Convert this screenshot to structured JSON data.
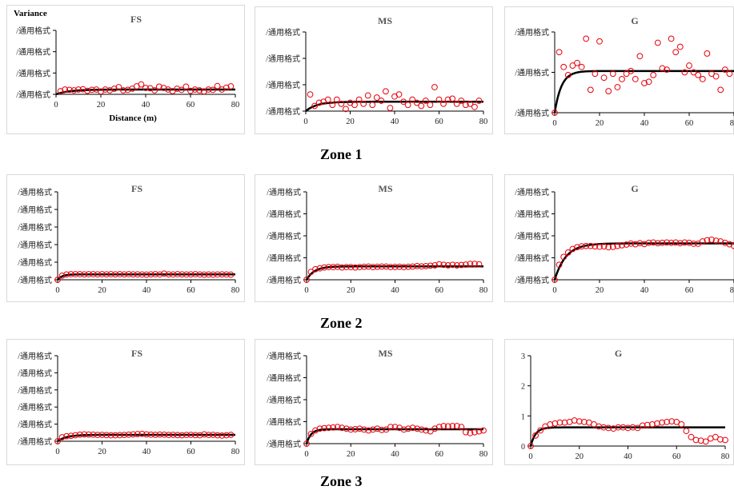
{
  "figure": {
    "zones": [
      "Zone 1",
      "Zone 2",
      "Zone 3"
    ]
  },
  "chart_data": [
    {
      "type": "scatter",
      "zone": "Zone 1",
      "title": "FS",
      "ylabel": "Variance",
      "xlabel": "Distance (m)",
      "xlim": [
        0,
        80
      ],
      "xticks": [
        0,
        20,
        40,
        60,
        80
      ],
      "yticks": [
        "/通用格式",
        "/通用格式",
        "/通用格式",
        "/通用格式"
      ],
      "ylim": [
        0,
        4
      ],
      "series": [
        {
          "kind": "points",
          "x": [
            2,
            4,
            6,
            8,
            10,
            12,
            14,
            16,
            18,
            20,
            22,
            24,
            26,
            28,
            30,
            32,
            34,
            36,
            38,
            40,
            42,
            44,
            46,
            48,
            50,
            52,
            54,
            56,
            58,
            60,
            62,
            64,
            66,
            68,
            70,
            72,
            74,
            76,
            78
          ],
          "y": [
            0.2,
            0.3,
            0.28,
            0.25,
            0.3,
            0.32,
            0.22,
            0.28,
            0.3,
            0.18,
            0.3,
            0.25,
            0.35,
            0.45,
            0.25,
            0.28,
            0.35,
            0.5,
            0.62,
            0.4,
            0.38,
            0.25,
            0.48,
            0.4,
            0.3,
            0.2,
            0.35,
            0.28,
            0.48,
            0.22,
            0.3,
            0.25,
            0.18,
            0.3,
            0.28,
            0.52,
            0.3,
            0.42,
            0.5
          ]
        },
        {
          "kind": "model",
          "sill": 0.3,
          "range": 6
        }
      ]
    },
    {
      "type": "scatter",
      "zone": "Zone 1",
      "title": "MS",
      "xlim": [
        0,
        80
      ],
      "xticks": [
        0,
        20,
        40,
        60,
        80
      ],
      "yticks": [
        "/通用格式",
        "/通用格式",
        "/通用格式",
        "/通用格式"
      ],
      "ylim": [
        0,
        3.8
      ],
      "series": [
        {
          "kind": "points",
          "x": [
            2,
            4,
            6,
            8,
            10,
            12,
            14,
            16,
            18,
            20,
            22,
            24,
            26,
            28,
            30,
            32,
            34,
            36,
            38,
            40,
            42,
            44,
            46,
            48,
            50,
            52,
            54,
            56,
            58,
            60,
            62,
            64,
            66,
            68,
            70,
            72,
            74,
            76,
            78
          ],
          "y": [
            0.8,
            0.25,
            0.4,
            0.45,
            0.55,
            0.3,
            0.55,
            0.35,
            0.1,
            0.4,
            0.3,
            0.55,
            0.35,
            0.75,
            0.3,
            0.65,
            0.5,
            0.95,
            0.15,
            0.7,
            0.8,
            0.45,
            0.3,
            0.55,
            0.4,
            0.25,
            0.5,
            0.3,
            1.15,
            0.55,
            0.35,
            0.55,
            0.6,
            0.35,
            0.5,
            0.3,
            0.35,
            0.2,
            0.5
          ]
        },
        {
          "kind": "model",
          "sill": 0.45,
          "range": 5
        }
      ]
    },
    {
      "type": "scatter",
      "zone": "Zone 1",
      "title": "G",
      "xlim": [
        0,
        80
      ],
      "xticks": [
        0,
        20,
        40,
        60,
        80
      ],
      "yticks": [
        "/通用格式",
        "/通用格式",
        "/通用格式"
      ],
      "ylim": [
        0,
        3
      ],
      "series": [
        {
          "kind": "points",
          "x": [
            0,
            2,
            4,
            6,
            8,
            10,
            12,
            14,
            16,
            18,
            20,
            22,
            24,
            26,
            28,
            30,
            32,
            34,
            36,
            38,
            40,
            42,
            44,
            46,
            48,
            50,
            52,
            54,
            56,
            58,
            60,
            62,
            64,
            66,
            68,
            70,
            72,
            74,
            76,
            78
          ],
          "y": [
            0,
            2.25,
            1.7,
            1.4,
            1.75,
            1.85,
            1.7,
            2.75,
            0.85,
            1.45,
            2.65,
            1.3,
            0.8,
            1.45,
            0.95,
            1.25,
            1.45,
            1.55,
            1.25,
            2.1,
            1.1,
            1.15,
            1.4,
            2.6,
            1.65,
            1.6,
            2.75,
            2.25,
            2.45,
            1.5,
            1.75,
            1.5,
            1.4,
            1.25,
            2.2,
            1.45,
            1.35,
            0.85,
            1.6,
            1.45
          ]
        },
        {
          "kind": "model",
          "sill": 1.55,
          "range": 3
        }
      ]
    },
    {
      "type": "scatter",
      "zone": "Zone 2",
      "title": "FS",
      "xlim": [
        0,
        80
      ],
      "xticks": [
        0,
        20,
        40,
        60,
        80
      ],
      "yticks": [
        "/通用格式",
        "/通用格式",
        "/通用格式",
        "/通用格式",
        "/通用格式",
        "/通用格式"
      ],
      "ylim": [
        0,
        6
      ],
      "series": [
        {
          "kind": "points",
          "x": [
            0,
            2,
            4,
            6,
            8,
            10,
            12,
            14,
            16,
            18,
            20,
            22,
            24,
            26,
            28,
            30,
            32,
            34,
            36,
            38,
            40,
            42,
            44,
            46,
            48,
            50,
            52,
            54,
            56,
            58,
            60,
            62,
            64,
            66,
            68,
            70,
            72,
            74,
            76,
            78
          ],
          "y": [
            0,
            0.28,
            0.36,
            0.38,
            0.38,
            0.38,
            0.37,
            0.38,
            0.38,
            0.37,
            0.38,
            0.37,
            0.38,
            0.37,
            0.38,
            0.37,
            0.38,
            0.37,
            0.37,
            0.36,
            0.35,
            0.37,
            0.38,
            0.36,
            0.42,
            0.37,
            0.36,
            0.38,
            0.37,
            0.36,
            0.37,
            0.38,
            0.36,
            0.35,
            0.36,
            0.35,
            0.36,
            0.37,
            0.36,
            0.35
          ]
        },
        {
          "kind": "model",
          "sill": 0.37,
          "range": 2
        }
      ]
    },
    {
      "type": "scatter",
      "zone": "Zone 2",
      "title": "MS",
      "xlim": [
        0,
        80
      ],
      "xticks": [
        0,
        20,
        40,
        60,
        80
      ],
      "yticks": [
        "/通用格式",
        "/通用格式",
        "/通用格式",
        "/通用格式",
        "/通用格式"
      ],
      "ylim": [
        0,
        5
      ],
      "series": [
        {
          "kind": "points",
          "x": [
            0,
            2,
            4,
            6,
            8,
            10,
            12,
            14,
            16,
            18,
            20,
            22,
            24,
            26,
            28,
            30,
            32,
            34,
            36,
            38,
            40,
            42,
            44,
            46,
            48,
            50,
            52,
            54,
            56,
            58,
            60,
            62,
            64,
            66,
            68,
            70,
            72,
            74,
            76,
            78
          ],
          "y": [
            0,
            0.45,
            0.6,
            0.65,
            0.7,
            0.72,
            0.72,
            0.74,
            0.7,
            0.72,
            0.72,
            0.7,
            0.72,
            0.74,
            0.75,
            0.72,
            0.74,
            0.75,
            0.75,
            0.72,
            0.73,
            0.74,
            0.72,
            0.74,
            0.75,
            0.78,
            0.76,
            0.78,
            0.8,
            0.82,
            0.88,
            0.85,
            0.82,
            0.85,
            0.82,
            0.84,
            0.86,
            0.9,
            0.9,
            0.88
          ]
        },
        {
          "kind": "model",
          "sill": 0.76,
          "range": 3.5
        }
      ]
    },
    {
      "type": "scatter",
      "zone": "Zone 2",
      "title": "G",
      "xlim": [
        0,
        80
      ],
      "xticks": [
        0,
        20,
        40,
        60,
        80
      ],
      "yticks": [
        "/通用格式",
        "/通用格式",
        "/通用格式",
        "/通用格式",
        "/通用格式"
      ],
      "ylim": [
        0,
        5
      ],
      "series": [
        {
          "kind": "points",
          "x": [
            0,
            2,
            4,
            6,
            8,
            10,
            12,
            14,
            16,
            18,
            20,
            22,
            24,
            26,
            28,
            30,
            32,
            34,
            36,
            38,
            40,
            42,
            44,
            46,
            48,
            50,
            52,
            54,
            56,
            58,
            60,
            62,
            64,
            66,
            68,
            70,
            72,
            74,
            76,
            78,
            80
          ],
          "y": [
            0,
            0.85,
            1.3,
            1.55,
            1.75,
            1.85,
            1.9,
            1.92,
            1.92,
            1.9,
            1.88,
            1.9,
            1.85,
            1.87,
            1.92,
            1.96,
            2.0,
            2.06,
            2.02,
            2.08,
            2.03,
            2.1,
            2.12,
            2.08,
            2.1,
            2.12,
            2.1,
            2.12,
            2.08,
            2.12,
            2.1,
            2.05,
            2.05,
            2.18,
            2.25,
            2.28,
            2.22,
            2.18,
            2.1,
            2.02,
            1.92
          ]
        },
        {
          "kind": "model",
          "sill": 2.07,
          "range": 5
        }
      ]
    },
    {
      "type": "scatter",
      "zone": "Zone 3",
      "title": "FS",
      "xlim": [
        0,
        80
      ],
      "xticks": [
        0,
        20,
        40,
        60,
        80
      ],
      "yticks": [
        "/通用格式",
        "/通用格式",
        "/通用格式",
        "/通用格式",
        "/通用格式",
        "/通用格式"
      ],
      "ylim": [
        0,
        6
      ],
      "series": [
        {
          "kind": "points",
          "x": [
            0,
            2,
            4,
            6,
            8,
            10,
            12,
            14,
            16,
            18,
            20,
            22,
            24,
            26,
            28,
            30,
            32,
            34,
            36,
            38,
            40,
            42,
            44,
            46,
            48,
            50,
            52,
            54,
            56,
            58,
            60,
            62,
            64,
            66,
            68,
            70,
            72,
            74,
            76,
            78
          ],
          "y": [
            0,
            0.28,
            0.35,
            0.38,
            0.42,
            0.46,
            0.48,
            0.47,
            0.46,
            0.44,
            0.45,
            0.43,
            0.42,
            0.42,
            0.43,
            0.44,
            0.46,
            0.48,
            0.5,
            0.52,
            0.48,
            0.46,
            0.45,
            0.47,
            0.46,
            0.44,
            0.45,
            0.43,
            0.42,
            0.44,
            0.45,
            0.43,
            0.42,
            0.48,
            0.44,
            0.45,
            0.42,
            0.4,
            0.42,
            0.45
          ]
        },
        {
          "kind": "model",
          "sill": 0.45,
          "range": 4
        }
      ]
    },
    {
      "type": "scatter",
      "zone": "Zone 3",
      "title": "MS",
      "xlim": [
        0,
        80
      ],
      "xticks": [
        0,
        20,
        40,
        60,
        80
      ],
      "yticks": [
        "/通用格式",
        "/通用格式",
        "/通用格式",
        "/通用格式",
        "/通用格式"
      ],
      "ylim": [
        0,
        5
      ],
      "series": [
        {
          "kind": "points",
          "x": [
            0,
            2,
            4,
            6,
            8,
            10,
            12,
            14,
            16,
            18,
            20,
            22,
            24,
            26,
            28,
            30,
            32,
            34,
            36,
            38,
            40,
            42,
            44,
            46,
            48,
            50,
            52,
            54,
            56,
            58,
            60,
            62,
            64,
            66,
            68,
            70,
            72,
            74,
            76,
            78,
            80
          ],
          "y": [
            0,
            0.55,
            0.75,
            0.85,
            0.88,
            0.9,
            0.92,
            0.95,
            0.9,
            0.85,
            0.8,
            0.82,
            0.85,
            0.8,
            0.75,
            0.8,
            0.85,
            0.78,
            0.8,
            0.95,
            0.95,
            0.9,
            0.8,
            0.85,
            0.9,
            0.85,
            0.8,
            0.75,
            0.7,
            0.85,
            0.95,
            1.0,
            0.98,
            1.0,
            1.0,
            0.95,
            0.65,
            0.6,
            0.65,
            0.7,
            0.75
          ]
        },
        {
          "kind": "model",
          "sill": 0.82,
          "range": 2
        }
      ]
    },
    {
      "type": "scatter",
      "zone": "Zone 3",
      "title": "G",
      "xlim": [
        0,
        80
      ],
      "xticks": [
        0,
        20,
        40,
        60,
        80
      ],
      "yticks": [
        "0",
        "1",
        "2",
        "3"
      ],
      "ylim": [
        0,
        3
      ],
      "series": [
        {
          "kind": "points",
          "x": [
            0,
            2,
            4,
            6,
            8,
            10,
            12,
            14,
            16,
            18,
            20,
            22,
            24,
            26,
            28,
            30,
            32,
            34,
            36,
            38,
            40,
            42,
            44,
            46,
            48,
            50,
            52,
            54,
            56,
            58,
            60,
            62,
            64,
            66,
            68,
            70,
            72,
            74,
            76,
            78,
            80
          ],
          "y": [
            0,
            0.35,
            0.52,
            0.65,
            0.72,
            0.75,
            0.78,
            0.78,
            0.8,
            0.85,
            0.82,
            0.8,
            0.78,
            0.72,
            0.65,
            0.62,
            0.6,
            0.58,
            0.62,
            0.62,
            0.6,
            0.62,
            0.6,
            0.68,
            0.7,
            0.72,
            0.75,
            0.78,
            0.8,
            0.82,
            0.8,
            0.72,
            0.5,
            0.3,
            0.2,
            0.18,
            0.15,
            0.25,
            0.3,
            0.22,
            0.2
          ]
        },
        {
          "kind": "model",
          "sill": 0.62,
          "range": 2
        }
      ]
    }
  ]
}
